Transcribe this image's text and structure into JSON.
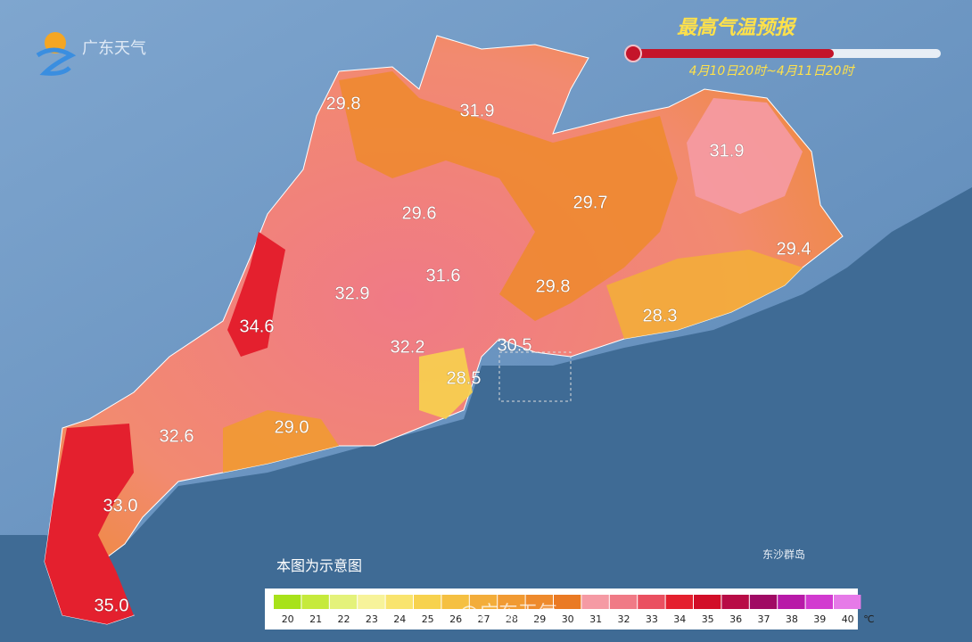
{
  "header": {
    "logo": "广东天气",
    "title": "最高气温预报",
    "period": "4月10日20时~4月11日20时"
  },
  "note": "本图为示意图",
  "island_label": "东沙群岛",
  "watermark": "@广东天气",
  "temperatures": [
    "29.8",
    "31.9",
    "31.9",
    "29.6",
    "29.7",
    "29.4",
    "31.6",
    "32.9",
    "29.8",
    "34.6",
    "28.3",
    "30.5",
    "32.2",
    "28.5",
    "32.6",
    "29.0",
    "33.0",
    "35.0"
  ],
  "legend": {
    "unit": "℃",
    "items": [
      {
        "label": "20",
        "color": "#a8e21a"
      },
      {
        "label": "21",
        "color": "#c6ea3c"
      },
      {
        "label": "22",
        "color": "#e4f27a"
      },
      {
        "label": "23",
        "color": "#f7f39a"
      },
      {
        "label": "24",
        "color": "#f9e46e"
      },
      {
        "label": "25",
        "color": "#f7d24e"
      },
      {
        "label": "26",
        "color": "#f5c042"
      },
      {
        "label": "27",
        "color": "#f3ad3a"
      },
      {
        "label": "28",
        "color": "#f19a32"
      },
      {
        "label": "29",
        "color": "#ee8a2c"
      },
      {
        "label": "30",
        "color": "#ea7a24"
      },
      {
        "label": "31",
        "color": "#f59aa4"
      },
      {
        "label": "32",
        "color": "#f07a86"
      },
      {
        "label": "33",
        "color": "#ea5060"
      },
      {
        "label": "34",
        "color": "#e4202e"
      },
      {
        "label": "35",
        "color": "#d20e28"
      },
      {
        "label": "36",
        "color": "#b80c46"
      },
      {
        "label": "37",
        "color": "#a00a64"
      },
      {
        "label": "38",
        "color": "#b81aa8"
      },
      {
        "label": "39",
        "color": "#d23ad0"
      },
      {
        "label": "40",
        "color": "#e67ae8"
      }
    ]
  }
}
